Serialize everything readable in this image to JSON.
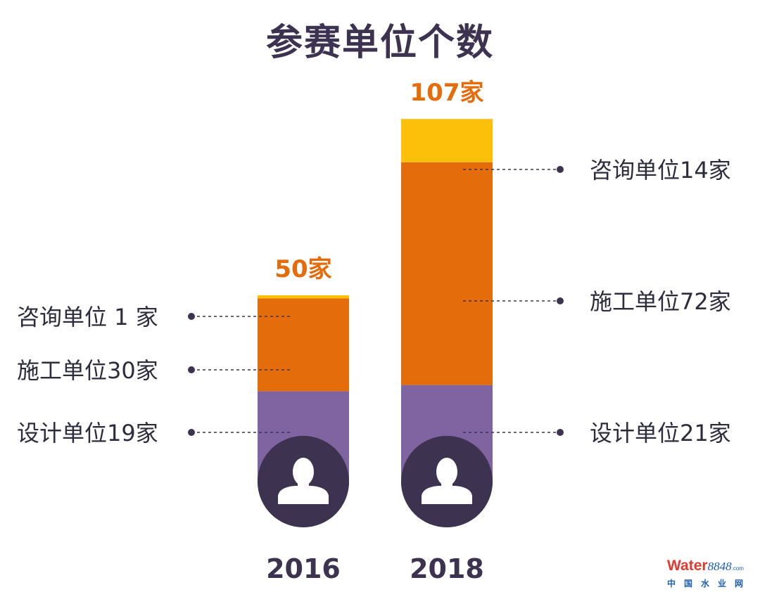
{
  "title": "参赛单位个数",
  "colors": {
    "consult": "#fcc00a",
    "construct": "#e46c0a",
    "design": "#8064a2",
    "circle": "#3d3350",
    "total": "#e46c0a",
    "text": "#2c2c3c",
    "year": "#3d3350"
  },
  "chart_data": {
    "type": "bar",
    "stacked": true,
    "categories": [
      "2016",
      "2018"
    ],
    "series": [
      {
        "key": "design",
        "name": "设计单位",
        "values": [
          19,
          21
        ]
      },
      {
        "key": "construct",
        "name": "施工单位",
        "values": [
          30,
          72
        ]
      },
      {
        "key": "consult",
        "name": "咨询单位",
        "values": [
          1,
          14
        ]
      }
    ],
    "totals": [
      50,
      107
    ],
    "total_labels": [
      "50家",
      "107家"
    ],
    "segment_labels": [
      [
        "设计单位19家",
        "施工单位30家",
        "咨询单位 1 家"
      ],
      [
        "设计单位21家",
        "施工单位72家",
        "咨询单位14家"
      ]
    ],
    "icon": "person-silhouette-icon"
  },
  "watermark": {
    "brand_prefix": "Wa",
    "brand_suffix": "ter",
    "brand_number": "8848",
    "brand_domain": ".com",
    "subtitle": "中国水业网"
  }
}
